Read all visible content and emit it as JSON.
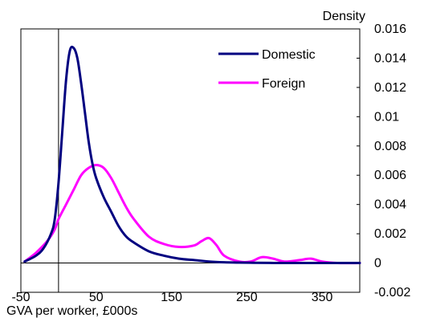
{
  "chart_data": {
    "type": "line",
    "title": "",
    "xlabel": "GVA per worker, £000s",
    "ylabel": "Density",
    "xlim": [
      -50,
      400
    ],
    "ylim": [
      -0.002,
      0.016
    ],
    "x_ticks": [
      -50,
      50,
      150,
      250,
      350
    ],
    "x_tick_labels": [
      "-50",
      "50",
      "150",
      "250",
      "350"
    ],
    "y_ticks": [
      -0.002,
      0,
      0.002,
      0.004,
      0.006,
      0.008,
      0.01,
      0.012,
      0.014,
      0.016
    ],
    "y_tick_labels": [
      "-0.002",
      "0",
      "0.002",
      "0.004",
      "0.006",
      "0.008",
      "0.01",
      "0.012",
      "0.014",
      "0.016"
    ],
    "y_axis_side": "right",
    "grid": false,
    "legend_position": "top-right",
    "vertical_reference_line_x": 0,
    "series": [
      {
        "name": "Domestic",
        "color": "#000080",
        "x": [
          -45,
          -30,
          -20,
          -10,
          -5,
          0,
          5,
          10,
          15,
          20,
          25,
          30,
          35,
          40,
          45,
          50,
          60,
          70,
          80,
          90,
          100,
          120,
          140,
          160,
          180,
          200,
          220,
          240,
          260,
          280,
          300,
          340,
          400
        ],
        "y": [
          0.0001,
          0.0005,
          0.001,
          0.002,
          0.003,
          0.0055,
          0.009,
          0.0125,
          0.0145,
          0.0147,
          0.014,
          0.0123,
          0.0103,
          0.0083,
          0.0068,
          0.0058,
          0.0045,
          0.0035,
          0.0025,
          0.0018,
          0.0014,
          0.0008,
          0.0005,
          0.0003,
          0.0002,
          0.0001,
          5e-05,
          3e-05,
          2e-05,
          1e-05,
          0,
          0,
          0
        ]
      },
      {
        "name": "Foreign",
        "color": "#ff00ff",
        "x": [
          -45,
          -30,
          -15,
          -5,
          0,
          10,
          20,
          30,
          40,
          50,
          60,
          70,
          80,
          90,
          100,
          120,
          140,
          160,
          180,
          190,
          200,
          210,
          220,
          240,
          255,
          270,
          285,
          300,
          320,
          335,
          350,
          370,
          400
        ],
        "y": [
          0.0001,
          0.0007,
          0.0015,
          0.0023,
          0.003,
          0.004,
          0.005,
          0.006,
          0.0065,
          0.0067,
          0.0065,
          0.0058,
          0.0048,
          0.0038,
          0.003,
          0.0018,
          0.0013,
          0.0011,
          0.0012,
          0.0015,
          0.0017,
          0.0012,
          0.0005,
          0.0001,
          0.0001,
          0.0004,
          0.0003,
          0.0001,
          0.0002,
          0.0003,
          0.0001,
          0,
          0
        ]
      }
    ]
  }
}
